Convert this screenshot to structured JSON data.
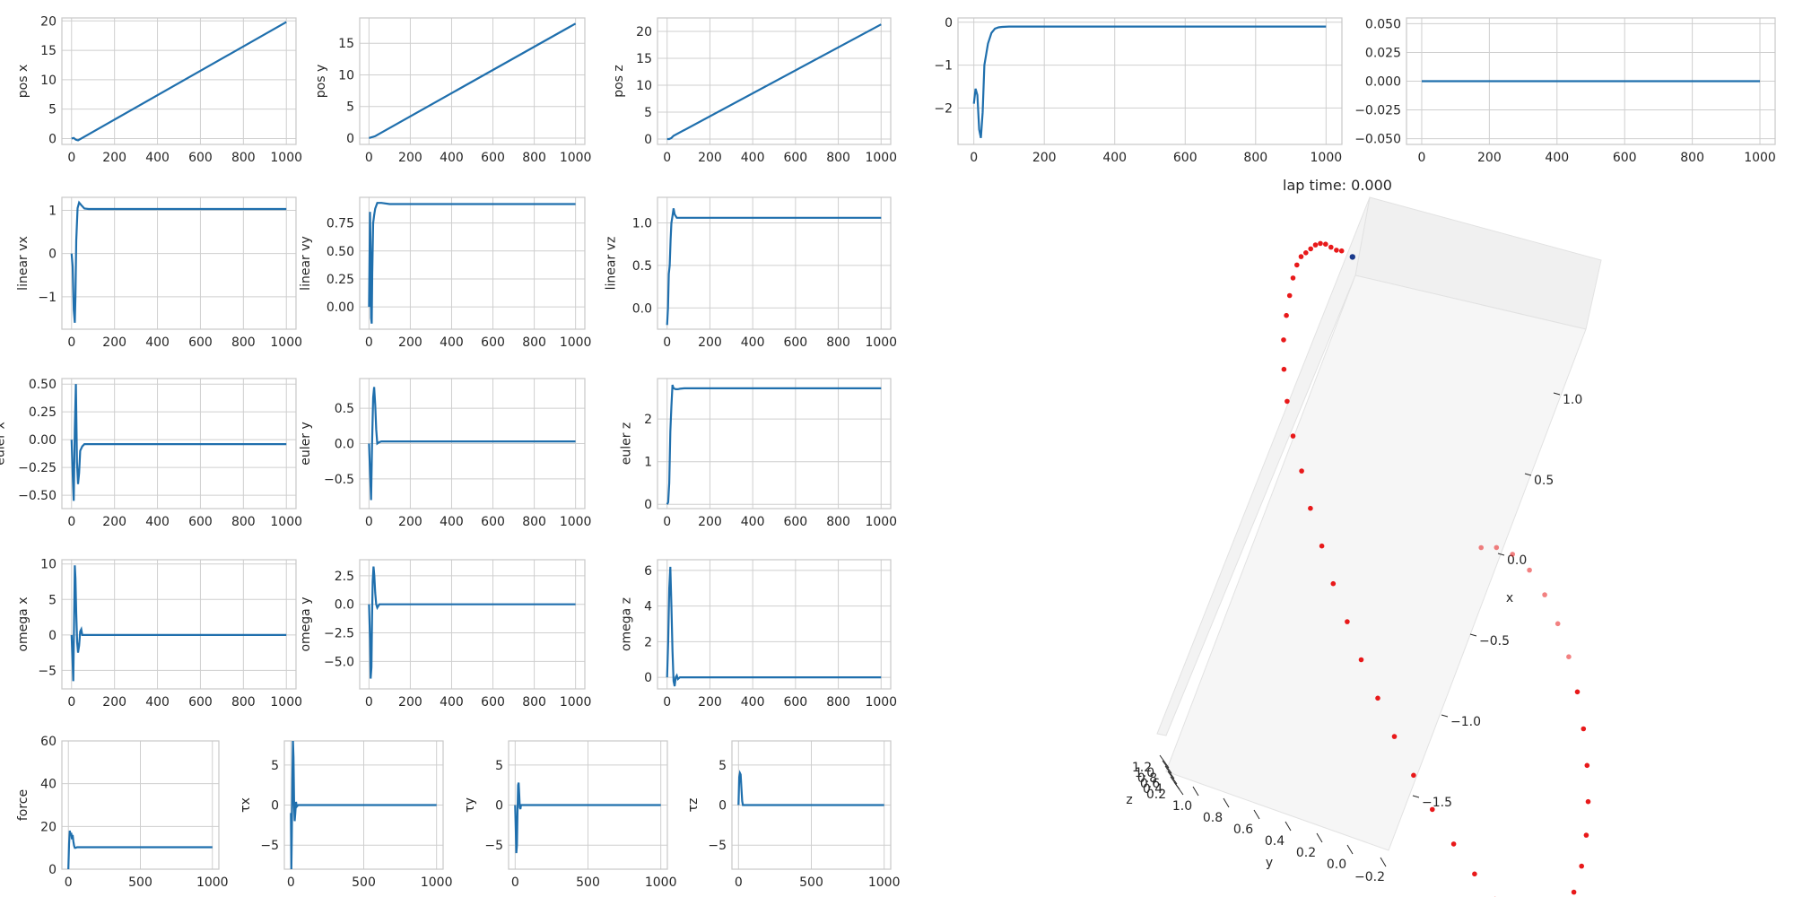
{
  "figure_title": "lap time: 0.000",
  "colors": {
    "line": "#1f6fad",
    "grid": "#cfcfcf",
    "frame": "#c8c8c8",
    "trajectory": "#e8191a",
    "current": "#1a3a8c"
  },
  "chart_data": [
    {
      "type": "line",
      "ylabel": "pos x",
      "xlim": [
        -45,
        1045
      ],
      "ylim": [
        -1,
        20.5
      ],
      "xticks": [
        0,
        200,
        400,
        600,
        800,
        1000
      ],
      "yticks": [
        0,
        5,
        10,
        15,
        20
      ],
      "ytick_labels": [
        "0",
        "5",
        "10",
        "15",
        "20"
      ],
      "x": [
        0,
        10,
        20,
        30,
        1000
      ],
      "y": [
        0,
        0.1,
        -0.2,
        -0.3,
        19.8
      ]
    },
    {
      "type": "line",
      "ylabel": "pos y",
      "xlim": [
        -45,
        1045
      ],
      "ylim": [
        -1,
        19
      ],
      "xticks": [
        0,
        200,
        400,
        600,
        800,
        1000
      ],
      "yticks": [
        0,
        5,
        10,
        15
      ],
      "ytick_labels": [
        "0",
        "5",
        "10",
        "15"
      ],
      "x": [
        0,
        10,
        20,
        30,
        40,
        1000
      ],
      "y": [
        0,
        0.1,
        0.2,
        0.3,
        0.5,
        18.1
      ]
    },
    {
      "type": "line",
      "ylabel": "pos z",
      "xlim": [
        -45,
        1045
      ],
      "ylim": [
        -1,
        22.5
      ],
      "xticks": [
        0,
        200,
        400,
        600,
        800,
        1000
      ],
      "yticks": [
        0,
        5,
        10,
        15,
        20
      ],
      "ytick_labels": [
        "0",
        "5",
        "10",
        "15",
        "20"
      ],
      "x": [
        0,
        10,
        20,
        30,
        1000
      ],
      "y": [
        0,
        0,
        0.2,
        0.6,
        21.3
      ]
    },
    {
      "type": "line",
      "ylabel": "",
      "xlim": [
        -45,
        1045
      ],
      "ylim": [
        -2.85,
        0.1
      ],
      "xticks": [
        0,
        200,
        400,
        600,
        800,
        1000
      ],
      "yticks": [
        0,
        -1,
        -2
      ],
      "ytick_labels": [
        "0",
        "−1",
        "−2"
      ],
      "x": [
        0,
        5,
        10,
        15,
        20,
        25,
        30,
        40,
        50,
        60,
        70,
        80,
        100,
        1000
      ],
      "y": [
        -1.9,
        -1.55,
        -1.7,
        -2.5,
        -2.7,
        -2.1,
        -1.0,
        -0.5,
        -0.25,
        -0.15,
        -0.12,
        -0.11,
        -0.1,
        -0.1
      ]
    },
    {
      "type": "line",
      "ylabel": "",
      "xlim": [
        -45,
        1045
      ],
      "ylim": [
        -0.055,
        0.055
      ],
      "xticks": [
        0,
        200,
        400,
        600,
        800,
        1000
      ],
      "yticks": [
        0.05,
        0.025,
        0,
        -0.025,
        -0.05
      ],
      "ytick_labels": [
        "0.050",
        "0.025",
        "0.000",
        "−0.025",
        "−0.050"
      ],
      "x": [
        0,
        1000
      ],
      "y": [
        0,
        0
      ]
    },
    {
      "type": "line",
      "ylabel": "linear vx",
      "xlim": [
        -45,
        1045
      ],
      "ylim": [
        -1.75,
        1.3
      ],
      "xticks": [
        0,
        200,
        400,
        600,
        800,
        1000
      ],
      "yticks": [
        1,
        0,
        -1
      ],
      "ytick_labels": [
        "1",
        "0",
        "−1"
      ],
      "x": [
        0,
        5,
        10,
        15,
        18,
        22,
        28,
        35,
        45,
        60,
        80,
        1000
      ],
      "y": [
        0,
        -0.3,
        -1.3,
        -1.6,
        -1.0,
        0.3,
        1.05,
        1.18,
        1.12,
        1.04,
        1.03,
        1.03
      ]
    },
    {
      "type": "line",
      "ylabel": "linear vy",
      "xlim": [
        -45,
        1045
      ],
      "ylim": [
        -0.2,
        0.98
      ],
      "xticks": [
        0,
        200,
        400,
        600,
        800,
        1000
      ],
      "yticks": [
        0,
        0.25,
        0.5,
        0.75
      ],
      "ytick_labels": [
        "0.00",
        "0.25",
        "0.50",
        "0.75"
      ],
      "x": [
        0,
        5,
        8,
        10,
        13,
        16,
        20,
        25,
        30,
        40,
        60,
        100,
        1000
      ],
      "y": [
        0,
        0.85,
        0.5,
        -0.1,
        -0.15,
        0.3,
        0.75,
        0.82,
        0.88,
        0.93,
        0.93,
        0.92,
        0.92
      ]
    },
    {
      "type": "line",
      "ylabel": "linear vz",
      "xlim": [
        -45,
        1045
      ],
      "ylim": [
        -0.25,
        1.3
      ],
      "xticks": [
        0,
        200,
        400,
        600,
        800,
        1000
      ],
      "yticks": [
        0,
        0.5,
        1
      ],
      "ytick_labels": [
        "0.0",
        "0.5",
        "1.0"
      ],
      "x": [
        0,
        4,
        8,
        12,
        16,
        20,
        25,
        30,
        35,
        45,
        60,
        100,
        1000
      ],
      "y": [
        -0.2,
        0.0,
        0.4,
        0.5,
        0.8,
        1.0,
        1.08,
        1.17,
        1.1,
        1.06,
        1.06,
        1.06,
        1.06
      ]
    },
    {
      "type": "line",
      "ylabel": "euler x",
      "xlim": [
        -45,
        1045
      ],
      "ylim": [
        -0.62,
        0.55
      ],
      "xticks": [
        0,
        200,
        400,
        600,
        800,
        1000
      ],
      "yticks": [
        0.5,
        0.25,
        0,
        -0.25,
        -0.5
      ],
      "ytick_labels": [
        "0.50",
        "0.25",
        "0.00",
        "−0.25",
        "−0.50"
      ],
      "x": [
        0,
        5,
        10,
        15,
        20,
        25,
        30,
        35,
        40,
        50,
        60,
        80,
        1000
      ],
      "y": [
        0,
        -0.3,
        -0.55,
        0.1,
        0.5,
        -0.2,
        -0.4,
        -0.3,
        -0.1,
        -0.06,
        -0.04,
        -0.04,
        -0.04
      ]
    },
    {
      "type": "line",
      "ylabel": "euler y",
      "xlim": [
        -45,
        1045
      ],
      "ylim": [
        -0.92,
        0.92
      ],
      "xticks": [
        0,
        200,
        400,
        600,
        800,
        1000
      ],
      "yticks": [
        0.5,
        0,
        -0.5
      ],
      "ytick_labels": [
        "0.5",
        "0.0",
        "−0.5"
      ],
      "x": [
        0,
        5,
        10,
        15,
        20,
        25,
        30,
        35,
        40,
        50,
        60,
        80,
        1000
      ],
      "y": [
        0,
        -0.4,
        -0.8,
        0,
        0.65,
        0.8,
        0.55,
        0.2,
        0.0,
        0.02,
        0.03,
        0.03,
        0.03
      ]
    },
    {
      "type": "line",
      "ylabel": "euler z",
      "xlim": [
        -45,
        1045
      ],
      "ylim": [
        -0.1,
        2.95
      ],
      "xticks": [
        0,
        200,
        400,
        600,
        800,
        1000
      ],
      "yticks": [
        0,
        1,
        2
      ],
      "ytick_labels": [
        "0",
        "1",
        "2"
      ],
      "x": [
        0,
        5,
        10,
        15,
        20,
        25,
        30,
        40,
        50,
        60,
        80,
        1000
      ],
      "y": [
        0,
        0.05,
        0.5,
        1.7,
        2.3,
        2.8,
        2.72,
        2.7,
        2.7,
        2.71,
        2.72,
        2.72
      ]
    },
    {
      "type": "line",
      "ylabel": "omega x",
      "xlim": [
        -45,
        1045
      ],
      "ylim": [
        -7.6,
        10.6
      ],
      "xticks": [
        0,
        200,
        400,
        600,
        800,
        1000
      ],
      "yticks": [
        10,
        5,
        0,
        -5
      ],
      "ytick_labels": [
        "10",
        "5",
        "0",
        "−5"
      ],
      "x": [
        0,
        5,
        8,
        12,
        15,
        18,
        22,
        26,
        30,
        35,
        40,
        45,
        50,
        60,
        80,
        1000
      ],
      "y": [
        0,
        -4,
        -6.5,
        2,
        9.8,
        8,
        3,
        -1,
        -2.5,
        -1.5,
        0.5,
        0.8,
        0,
        0,
        0,
        0
      ]
    },
    {
      "type": "line",
      "ylabel": "omega y",
      "xlim": [
        -45,
        1045
      ],
      "ylim": [
        -7.4,
        3.9
      ],
      "xticks": [
        0,
        200,
        400,
        600,
        800,
        1000
      ],
      "yticks": [
        2.5,
        0,
        -2.5,
        -5
      ],
      "ytick_labels": [
        "2.5",
        "0.0",
        "−2.5",
        "−5.0"
      ],
      "x": [
        0,
        5,
        8,
        12,
        15,
        18,
        22,
        26,
        30,
        35,
        40,
        50,
        60,
        80,
        1000
      ],
      "y": [
        0,
        -3,
        -6.5,
        -5.5,
        -1,
        2,
        3.3,
        2.5,
        1,
        0,
        -0.3,
        0,
        0,
        0,
        0
      ]
    },
    {
      "type": "line",
      "ylabel": "omega z",
      "xlim": [
        -45,
        1045
      ],
      "ylim": [
        -0.65,
        6.6
      ],
      "xticks": [
        0,
        200,
        400,
        600,
        800,
        1000
      ],
      "yticks": [
        0,
        2,
        4,
        6
      ],
      "ytick_labels": [
        "0",
        "2",
        "4",
        "6"
      ],
      "x": [
        0,
        5,
        10,
        15,
        20,
        25,
        30,
        35,
        40,
        45,
        50,
        60,
        80,
        1000
      ],
      "y": [
        0,
        2,
        5,
        6.2,
        4,
        1.5,
        -0.2,
        -0.5,
        0,
        0.1,
        -0.1,
        0,
        0,
        0
      ]
    },
    {
      "type": "line",
      "ylabel": "force",
      "xlim": [
        -45,
        1045
      ],
      "ylim": [
        0,
        60
      ],
      "xticks": [
        0,
        500,
        1000
      ],
      "yticks": [
        0,
        20,
        40,
        60
      ],
      "ytick_labels": [
        "0",
        "20",
        "40",
        "60"
      ],
      "x": [
        0,
        5,
        10,
        15,
        20,
        25,
        30,
        35,
        40,
        45,
        50,
        60,
        80,
        1000
      ],
      "y": [
        0,
        12,
        18,
        16,
        17,
        14,
        16,
        13,
        11,
        10,
        10,
        10.3,
        10.3,
        10.3
      ]
    },
    {
      "type": "line",
      "ylabel": "τx",
      "xlim": [
        -45,
        1045
      ],
      "ylim": [
        -8,
        8
      ],
      "xticks": [
        0,
        500,
        1000
      ],
      "yticks": [
        5,
        0,
        -5
      ],
      "ytick_labels": [
        "5",
        "0",
        "−5"
      ],
      "x": [
        0,
        3,
        6,
        10,
        14,
        18,
        22,
        26,
        30,
        35,
        40,
        50,
        60,
        1000
      ],
      "y": [
        -1,
        -8,
        -4,
        3,
        8,
        6,
        0,
        -2,
        -1,
        0.4,
        -0.2,
        0,
        0,
        0
      ]
    },
    {
      "type": "line",
      "ylabel": "τy",
      "xlim": [
        -45,
        1045
      ],
      "ylim": [
        -8,
        8
      ],
      "xticks": [
        0,
        500,
        1000
      ],
      "yticks": [
        5,
        0,
        -5
      ],
      "ytick_labels": [
        "5",
        "0",
        "−5"
      ],
      "x": [
        0,
        4,
        8,
        12,
        16,
        20,
        24,
        28,
        32,
        36,
        40,
        50,
        1000
      ],
      "y": [
        0,
        -3,
        -6,
        -5,
        -1,
        2.5,
        2.8,
        1.2,
        -0.3,
        -0.5,
        0,
        0,
        0
      ]
    },
    {
      "type": "line",
      "ylabel": "τz",
      "xlim": [
        -45,
        1045
      ],
      "ylim": [
        -8,
        8
      ],
      "xticks": [
        0,
        500,
        1000
      ],
      "yticks": [
        5,
        0,
        -5
      ],
      "ytick_labels": [
        "5",
        "0",
        "−5"
      ],
      "x": [
        0,
        5,
        10,
        15,
        20,
        25,
        30,
        35,
        40,
        1000
      ],
      "y": [
        0,
        3.5,
        4,
        3.8,
        2,
        0.5,
        0,
        0,
        0,
        0
      ]
    },
    {
      "type": "scatter3d",
      "xlabel": "x",
      "ylabel": "y",
      "zlabel": "z",
      "x_ticks": [
        "1.0",
        "0.5",
        "0.0",
        "−0.5",
        "−1.0",
        "−1.5"
      ],
      "y_ticks": [
        "1.0",
        "0.8",
        "0.6",
        "0.4",
        "0.2",
        "0.0",
        "−0.2"
      ],
      "z_ticks": [
        "1.2",
        "1.0",
        "0.8",
        "0.6",
        "0.4",
        "0.2"
      ],
      "trajectory_x": [
        1.3,
        1.3,
        1.31,
        1.32,
        1.32,
        1.31,
        1.29,
        1.27,
        1.25,
        1.21,
        1.15,
        1.07,
        0.98,
        0.87,
        0.74,
        0.6,
        0.45,
        0.3,
        0.14,
        -0.02,
        -0.18,
        -0.34,
        -0.5,
        -0.66,
        -0.82,
        -0.98,
        -1.12,
        -1.26,
        -1.38,
        -1.48,
        -1.55,
        -1.58,
        -1.56,
        -1.5,
        -1.4,
        -1.28,
        -1.14,
        -0.99,
        -0.83,
        -0.67,
        -0.51,
        -0.36,
        -0.22,
        -0.1,
        0.0,
        0.06,
        0.08,
        0.07
      ],
      "trajectory_y": [
        0.92,
        0.94,
        0.96,
        0.98,
        1.0,
        1.02,
        1.04,
        1.06,
        1.08,
        1.1,
        1.12,
        1.14,
        1.16,
        1.18,
        1.19,
        1.19,
        1.18,
        1.16,
        1.14,
        1.11,
        1.08,
        1.04,
        1.0,
        0.95,
        0.9,
        0.84,
        0.78,
        0.71,
        0.64,
        0.57,
        0.5,
        0.43,
        0.37,
        0.31,
        0.26,
        0.22,
        0.19,
        0.17,
        0.16,
        0.16,
        0.17,
        0.19,
        0.22,
        0.26,
        0.31,
        0.37,
        0.43,
        0.49
      ],
      "current_point": {
        "x": 1.28,
        "y": 0.88
      }
    }
  ]
}
